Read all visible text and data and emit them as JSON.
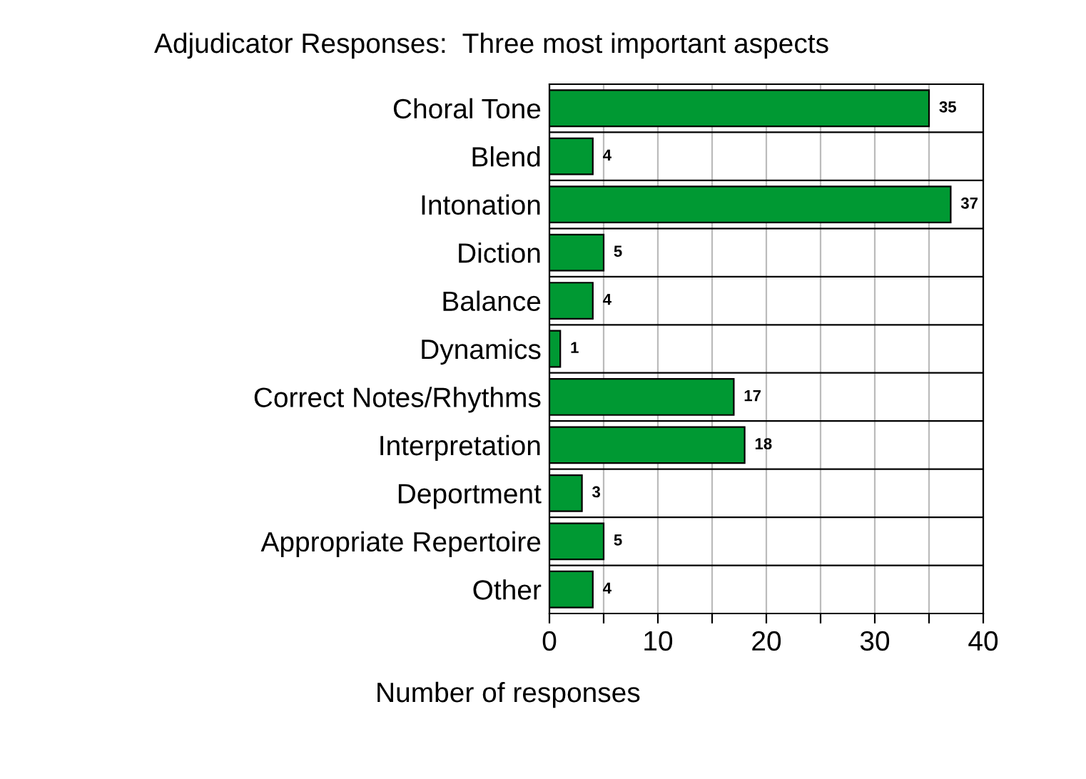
{
  "chart_data": {
    "type": "bar",
    "orientation": "horizontal",
    "title": "Adjudicator Responses:  Three most important aspects",
    "xlabel": "Number of responses",
    "categories": [
      "Choral Tone",
      "Blend",
      "Intonation",
      "Diction",
      "Balance",
      "Dynamics",
      "Correct Notes/Rhythms",
      "Interpretation",
      "Deportment",
      "Appropriate Repertoire",
      "Other"
    ],
    "values": [
      35,
      4,
      37,
      5,
      4,
      1,
      17,
      18,
      3,
      5,
      4
    ],
    "color": "#009933",
    "xlim": [
      0,
      40
    ],
    "xticks": [
      0,
      {
        "value": 5,
        "label": null
      },
      10,
      {
        "value": 15,
        "label": null
      },
      20,
      {
        "value": 25,
        "label": null
      },
      30,
      {
        "value": 35,
        "label": null
      },
      40
    ],
    "grid": true,
    "data_labels": true
  }
}
